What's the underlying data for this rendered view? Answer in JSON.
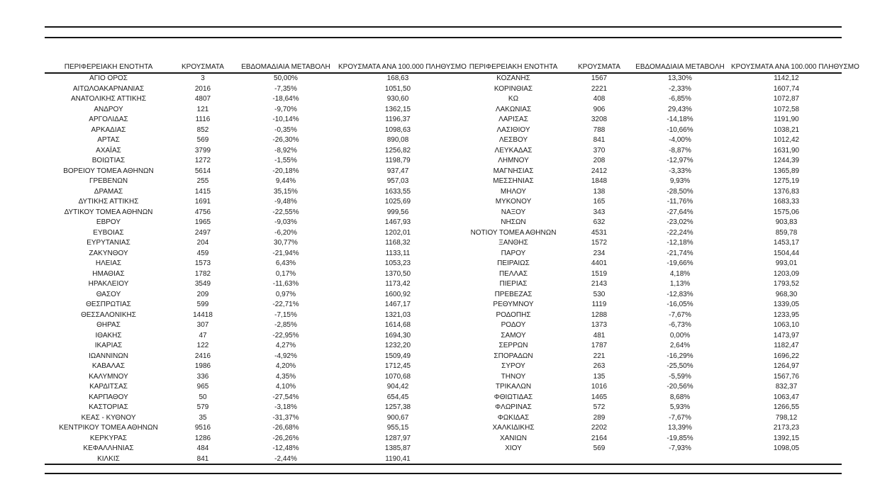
{
  "page": {
    "tables": [
      {
        "name": "left",
        "headers": [
          "ΠΕΡΙΦΕΡΕΙΑΚΗ ΕΝΟΤΗΤΑ",
          "ΚΡΟΥΣΜΑΤΑ",
          "ΕΒΔΟΜΑΔΙΑΙΑ ΜΕΤΑΒΟΛΗ",
          "ΚΡΟΥΣΜΑΤΑ ΑΝΑ 100.000 ΠΛΗΘΥΣΜΟ"
        ],
        "rows": [
          [
            "ΑΓΙΟ ΟΡΟΣ",
            "3",
            "50,00%",
            "168,63"
          ],
          [
            "ΑΙΤΩΛΟΑΚΑΡΝΑΝΙΑΣ",
            "2016",
            "-7,35%",
            "1051,50"
          ],
          [
            "ΑΝΑΤΟΛΙΚΗΣ ΑΤΤΙΚΗΣ",
            "4807",
            "-18,64%",
            "930,60"
          ],
          [
            "ΑΝΔΡΟΥ",
            "121",
            "-9,70%",
            "1362,15"
          ],
          [
            "ΑΡΓΟΛΙΔΑΣ",
            "1116",
            "-10,14%",
            "1196,37"
          ],
          [
            "ΑΡΚΑΔΙΑΣ",
            "852",
            "-0,35%",
            "1098,63"
          ],
          [
            "ΑΡΤΑΣ",
            "569",
            "-26,30%",
            "890,08"
          ],
          [
            "ΑΧΑΪΑΣ",
            "3799",
            "-8,92%",
            "1256,82"
          ],
          [
            "ΒΟΙΩΤΙΑΣ",
            "1272",
            "-1,55%",
            "1198,79"
          ],
          [
            "ΒΟΡΕΙΟΥ ΤΟΜΕΑ ΑΘΗΝΩΝ",
            "5614",
            "-20,18%",
            "937,47"
          ],
          [
            "ΓΡΕΒΕΝΩΝ",
            "255",
            "9,44%",
            "957,03"
          ],
          [
            "ΔΡΑΜΑΣ",
            "1415",
            "35,15%",
            "1633,55"
          ],
          [
            "ΔΥΤΙΚΗΣ ΑΤΤΙΚΗΣ",
            "1691",
            "-9,48%",
            "1025,69"
          ],
          [
            "ΔΥΤΙΚΟΥ ΤΟΜΕΑ ΑΘΗΝΩΝ",
            "4756",
            "-22,55%",
            "999,56"
          ],
          [
            "ΕΒΡΟΥ",
            "1965",
            "-9,03%",
            "1467,93"
          ],
          [
            "ΕΥΒΟΙΑΣ",
            "2497",
            "-6,20%",
            "1202,01"
          ],
          [
            "ΕΥΡΥΤΑΝΙΑΣ",
            "204",
            "30,77%",
            "1168,32"
          ],
          [
            "ΖΑΚΥΝΘΟΥ",
            "459",
            "-21,94%",
            "1133,11"
          ],
          [
            "ΗΛΕΙΑΣ",
            "1573",
            "6,43%",
            "1053,23"
          ],
          [
            "ΗΜΑΘΙΑΣ",
            "1782",
            "0,17%",
            "1370,50"
          ],
          [
            "ΗΡΑΚΛΕΙΟΥ",
            "3549",
            "-11,63%",
            "1173,42"
          ],
          [
            "ΘΑΣΟΥ",
            "209",
            "0,97%",
            "1600,92"
          ],
          [
            "ΘΕΣΠΡΩΤΙΑΣ",
            "599",
            "-22,71%",
            "1467,17"
          ],
          [
            "ΘΕΣΣΑΛΟΝΙΚΗΣ",
            "14418",
            "-7,15%",
            "1321,03"
          ],
          [
            "ΘΗΡΑΣ",
            "307",
            "-2,85%",
            "1614,68"
          ],
          [
            "ΙΘΑΚΗΣ",
            "47",
            "-22,95%",
            "1694,30"
          ],
          [
            "ΙΚΑΡΙΑΣ",
            "122",
            "4,27%",
            "1232,20"
          ],
          [
            "ΙΩΑΝΝΙΝΩΝ",
            "2416",
            "-4,92%",
            "1509,49"
          ],
          [
            "ΚΑΒΑΛΑΣ",
            "1986",
            "4,20%",
            "1712,45"
          ],
          [
            "ΚΑΛΥΜΝΟΥ",
            "336",
            "4,35%",
            "1070,68"
          ],
          [
            "ΚΑΡΔΙΤΣΑΣ",
            "965",
            "4,10%",
            "904,42"
          ],
          [
            "ΚΑΡΠΑΘΟΥ",
            "50",
            "-27,54%",
            "654,45"
          ],
          [
            "ΚΑΣΤΟΡΙΑΣ",
            "579",
            "-3,18%",
            "1257,38"
          ],
          [
            "ΚΕΑΣ - ΚΥΘΝΟΥ",
            "35",
            "-31,37%",
            "900,67"
          ],
          [
            "ΚΕΝΤΡΙΚΟΥ ΤΟΜΕΑ ΑΘΗΝΩΝ",
            "9516",
            "-26,68%",
            "955,15"
          ],
          [
            "ΚΕΡΚΥΡΑΣ",
            "1286",
            "-26,26%",
            "1287,97"
          ],
          [
            "ΚΕΦΑΛΛΗΝΙΑΣ",
            "484",
            "-12,48%",
            "1385,87"
          ],
          [
            "ΚΙΛΚΙΣ",
            "841",
            "-2,44%",
            "1190,41"
          ]
        ]
      },
      {
        "name": "right",
        "headers": [
          "ΠΕΡΙΦΕΡΕΙΑΚΗ ΕΝΟΤΗΤΑ",
          "ΚΡΟΥΣΜΑΤΑ",
          "ΕΒΔΟΜΑΔΙΑΙΑ ΜΕΤΑΒΟΛΗ",
          "ΚΡΟΥΣΜΑΤΑ ΑΝΑ 100.000 ΠΛΗΘΥΣΜΟ"
        ],
        "rows": [
          [
            "ΚΟΖΑΝΗΣ",
            "1567",
            "13,30%",
            "1142,12"
          ],
          [
            "ΚΟΡΙΝΘΙΑΣ",
            "2221",
            "-2,33%",
            "1607,74"
          ],
          [
            "ΚΩ",
            "408",
            "-6,85%",
            "1072,87"
          ],
          [
            "ΛΑΚΩΝΙΑΣ",
            "906",
            "29,43%",
            "1072,58"
          ],
          [
            "ΛΑΡΙΣΑΣ",
            "3208",
            "-14,18%",
            "1191,90"
          ],
          [
            "ΛΑΣΙΘΙΟΥ",
            "788",
            "-10,66%",
            "1038,21"
          ],
          [
            "ΛΕΣΒΟΥ",
            "841",
            "-4,00%",
            "1012,42"
          ],
          [
            "ΛΕΥΚΑΔΑΣ",
            "370",
            "-8,87%",
            "1631,90"
          ],
          [
            "ΛΗΜΝΟΥ",
            "208",
            "-12,97%",
            "1244,39"
          ],
          [
            "ΜΑΓΝΗΣΙΑΣ",
            "2412",
            "-3,33%",
            "1365,89"
          ],
          [
            "ΜΕΣΣΗΝΙΑΣ",
            "1848",
            "9,93%",
            "1275,19"
          ],
          [
            "ΜΗΛΟΥ",
            "138",
            "-28,50%",
            "1376,83"
          ],
          [
            "ΜΥΚΟΝΟΥ",
            "165",
            "-11,76%",
            "1683,33"
          ],
          [
            "ΝΑΞΟΥ",
            "343",
            "-27,64%",
            "1575,06"
          ],
          [
            "ΝΗΣΩΝ",
            "632",
            "-23,02%",
            "903,83"
          ],
          [
            "ΝΟΤΙΟΥ ΤΟΜΕΑ ΑΘΗΝΩΝ",
            "4531",
            "-22,24%",
            "859,78"
          ],
          [
            "ΞΑΝΘΗΣ",
            "1572",
            "-12,18%",
            "1453,17"
          ],
          [
            "ΠΑΡΟΥ",
            "234",
            "-21,74%",
            "1504,44"
          ],
          [
            "ΠΕΙΡΑΙΩΣ",
            "4401",
            "-19,66%",
            "993,01"
          ],
          [
            "ΠΕΛΛΑΣ",
            "1519",
            "4,18%",
            "1203,09"
          ],
          [
            "ΠΙΕΡΙΑΣ",
            "2143",
            "1,13%",
            "1793,52"
          ],
          [
            "ΠΡΕΒΕΖΑΣ",
            "530",
            "-12,83%",
            "968,30"
          ],
          [
            "ΡΕΘΥΜΝΟΥ",
            "1119",
            "-16,05%",
            "1339,05"
          ],
          [
            "ΡΟΔΟΠΗΣ",
            "1288",
            "-7,67%",
            "1233,95"
          ],
          [
            "ΡΟΔΟΥ",
            "1373",
            "-6,73%",
            "1063,10"
          ],
          [
            "ΣΑΜΟΥ",
            "481",
            "0,00%",
            "1473,97"
          ],
          [
            "ΣΕΡΡΩΝ",
            "1787",
            "2,64%",
            "1182,47"
          ],
          [
            "ΣΠΟΡΑΔΩΝ",
            "221",
            "-16,29%",
            "1696,22"
          ],
          [
            "ΣΥΡΟΥ",
            "263",
            "-25,50%",
            "1264,97"
          ],
          [
            "ΤΗΝΟΥ",
            "135",
            "-5,59%",
            "1567,76"
          ],
          [
            "ΤΡΙΚΑΛΩΝ",
            "1016",
            "-20,56%",
            "832,37"
          ],
          [
            "ΦΘΙΩΤΙΔΑΣ",
            "1465",
            "8,68%",
            "1063,47"
          ],
          [
            "ΦΛΩΡΙΝΑΣ",
            "572",
            "5,93%",
            "1266,55"
          ],
          [
            "ΦΩΚΙΔΑΣ",
            "289",
            "-7,67%",
            "798,12"
          ],
          [
            "ΧΑΛΚΙΔΙΚΗΣ",
            "2202",
            "13,39%",
            "2173,23"
          ],
          [
            "ΧΑΝΙΩΝ",
            "2164",
            "-19,85%",
            "1392,15"
          ],
          [
            "ΧΙΟΥ",
            "569",
            "-7,93%",
            "1098,05"
          ]
        ]
      }
    ],
    "colors": {
      "text": "#1a1a1a",
      "line": "#161616",
      "background": "#ffffff"
    }
  }
}
